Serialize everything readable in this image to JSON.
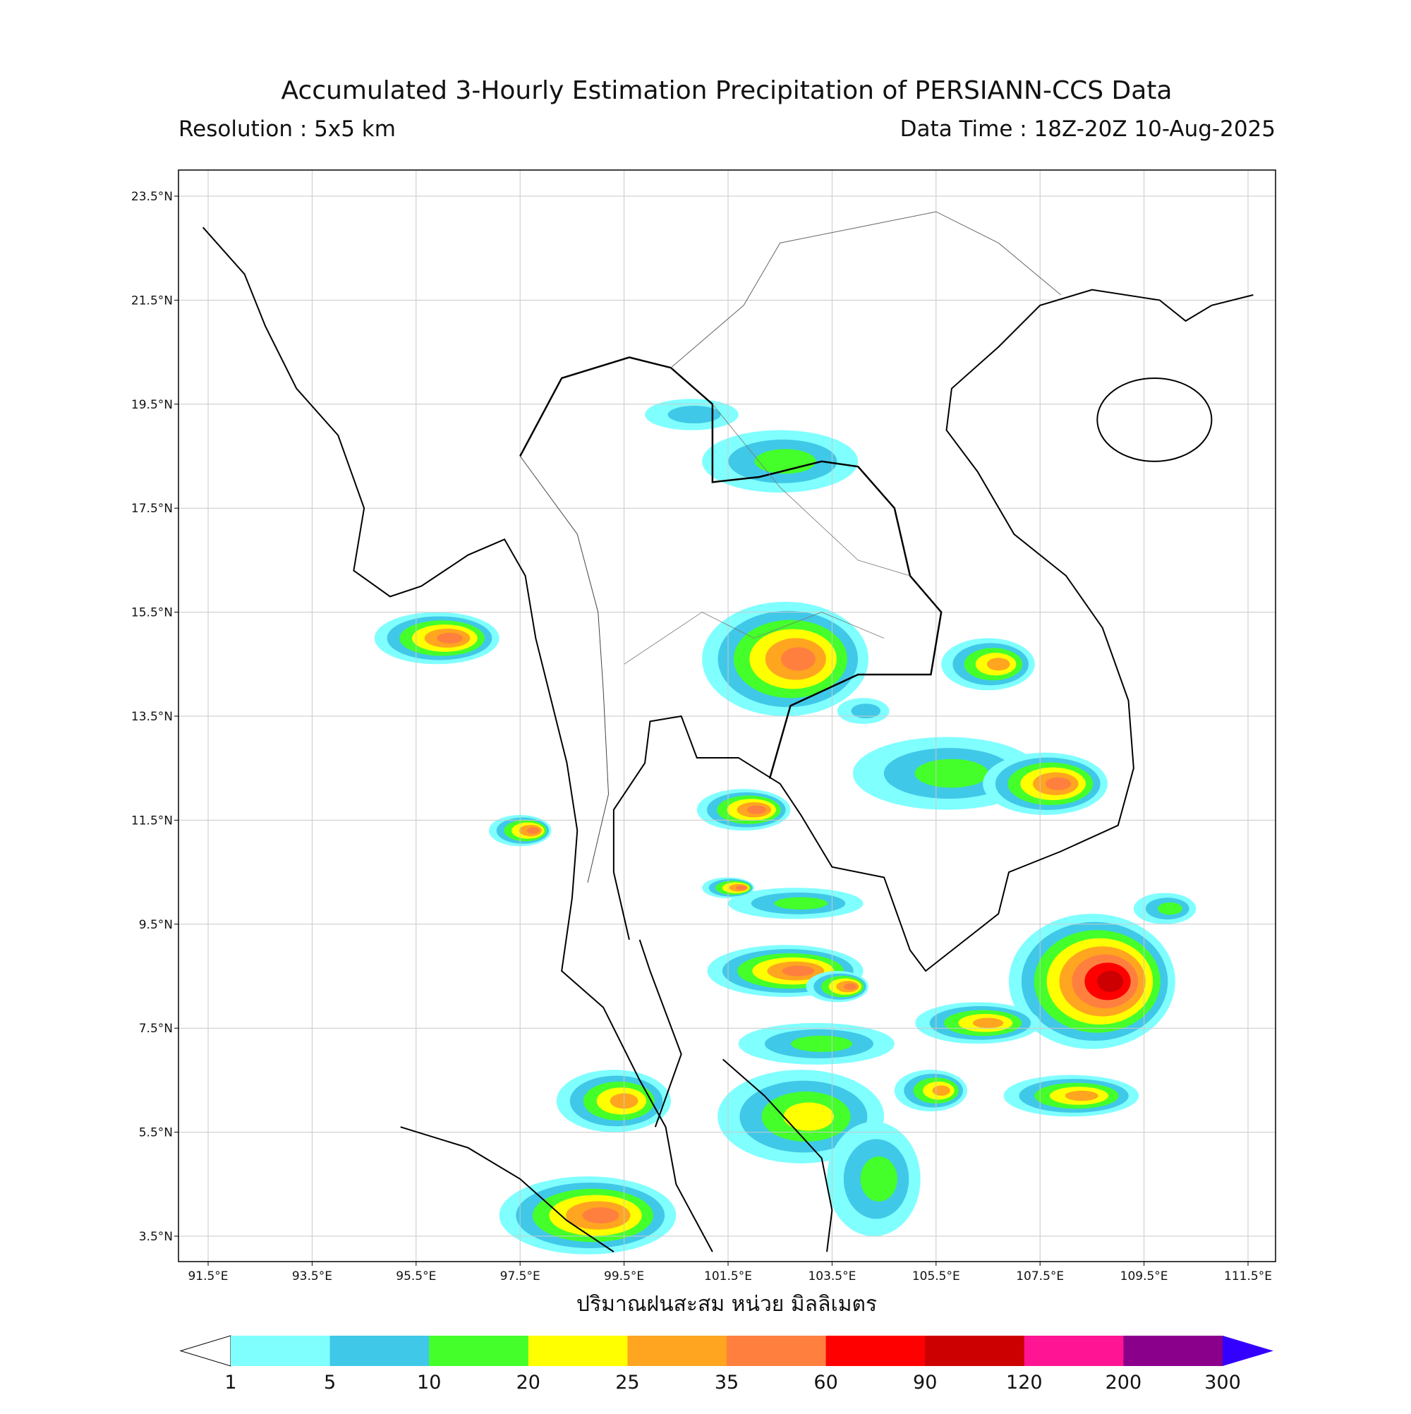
{
  "map": {
    "title": "Accumulated 3-Hourly Estimation Precipitation of PERSIANN-CCS Data",
    "subtitle_left": "Resolution : 5x5 km",
    "subtitle_right": "Data Time : 18Z-20Z 10-Aug-2025",
    "lat_ticks": [
      {
        "value": 23.5,
        "label": "23.5°N"
      },
      {
        "value": 21.5,
        "label": "21.5°N"
      },
      {
        "value": 19.5,
        "label": "19.5°N"
      },
      {
        "value": 17.5,
        "label": "17.5°N"
      },
      {
        "value": 15.5,
        "label": "15.5°N"
      },
      {
        "value": 13.5,
        "label": "13.5°N"
      },
      {
        "value": 11.5,
        "label": "11.5°N"
      },
      {
        "value": 9.5,
        "label": "9.5°N"
      },
      {
        "value": 7.5,
        "label": "7.5°N"
      },
      {
        "value": 5.5,
        "label": "5.5°N"
      },
      {
        "value": 3.5,
        "label": "3.5°N"
      }
    ],
    "lon_ticks": [
      {
        "value": 91.5,
        "label": "91.5°E"
      },
      {
        "value": 93.5,
        "label": "93.5°E"
      },
      {
        "value": 95.5,
        "label": "95.5°E"
      },
      {
        "value": 97.5,
        "label": "97.5°E"
      },
      {
        "value": 99.5,
        "label": "99.5°E"
      },
      {
        "value": 101.5,
        "label": "101.5°E"
      },
      {
        "value": 103.5,
        "label": "103.5°E"
      },
      {
        "value": 105.5,
        "label": "105.5°E"
      },
      {
        "value": 107.5,
        "label": "107.5°E"
      },
      {
        "value": 109.5,
        "label": "109.5°E"
      },
      {
        "value": 111.5,
        "label": "111.5°E"
      }
    ],
    "xlabel": "ปริมาณฝนสะสม หน่วย มิลลิเมตร",
    "colorbar": {
      "ticks": [
        1,
        5,
        10,
        20,
        25,
        35,
        60,
        90,
        120,
        200,
        300
      ],
      "colors": [
        "#80ffff",
        "#40c8e8",
        "#44ff2a",
        "#ffff00",
        "#ffa520",
        "#ff7f3f",
        "#ff0000",
        "#cc0000",
        "#ff1493",
        "#8b008b"
      ],
      "over_color": "#3300ff",
      "under_color": "#ffffff"
    }
  }
}
